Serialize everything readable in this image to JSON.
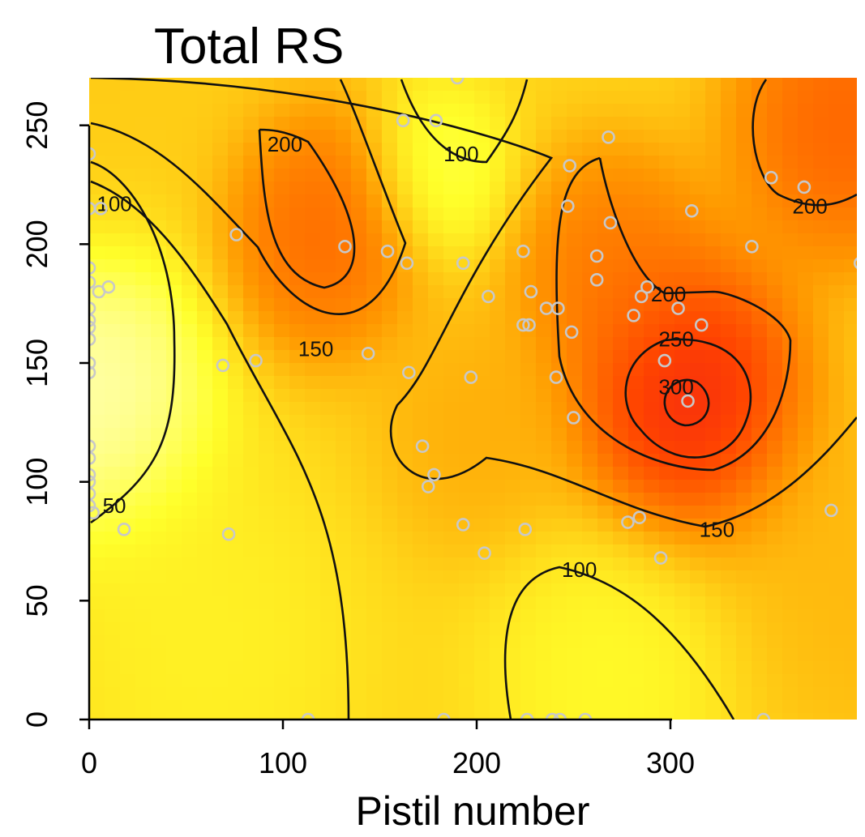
{
  "chart_data": {
    "type": "heatmap",
    "title": "Total RS",
    "xlabel": "Pistil number",
    "ylabel": "",
    "xlim": [
      0,
      400
    ],
    "ylim": [
      0,
      270
    ],
    "x_ticks": [
      0,
      100,
      200,
      300
    ],
    "y_ticks": [
      0,
      50,
      100,
      150,
      200,
      250
    ],
    "colormap": [
      "#ffffff",
      "#ffff2a",
      "#ff9900",
      "#ff4400",
      "#e8002a"
    ],
    "contour_levels": [
      50,
      100,
      150,
      200,
      250,
      300
    ],
    "contour_labels": [
      {
        "text": "50",
        "x": 13,
        "y": 90
      },
      {
        "text": "100",
        "x": 13,
        "y": 217
      },
      {
        "text": "100",
        "x": 192,
        "y": 238
      },
      {
        "text": "100",
        "x": 253,
        "y": 63
      },
      {
        "text": "150",
        "x": 117,
        "y": 156
      },
      {
        "text": "150",
        "x": 324,
        "y": 80
      },
      {
        "text": "200",
        "x": 101,
        "y": 242
      },
      {
        "text": "200",
        "x": 299,
        "y": 179
      },
      {
        "text": "200",
        "x": 372,
        "y": 216
      },
      {
        "text": "250",
        "x": 303,
        "y": 160
      },
      {
        "text": "300",
        "x": 303,
        "y": 140
      }
    ],
    "hotspots": [
      {
        "x": 0,
        "y": 140,
        "value": 10,
        "spread": 50
      },
      {
        "x": 0,
        "y": 270,
        "value": 130,
        "spread": 60
      },
      {
        "x": 120,
        "y": 205,
        "value": 240,
        "spread": 40
      },
      {
        "x": 180,
        "y": 230,
        "value": 60,
        "spread": 30
      },
      {
        "x": 310,
        "y": 135,
        "value": 330,
        "spread": 45
      },
      {
        "x": 270,
        "y": 190,
        "value": 220,
        "spread": 40
      },
      {
        "x": 390,
        "y": 250,
        "value": 250,
        "spread": 45
      },
      {
        "x": 200,
        "y": 120,
        "value": 160,
        "spread": 40
      },
      {
        "x": 270,
        "y": 20,
        "value": 80,
        "spread": 50
      },
      {
        "x": 60,
        "y": 30,
        "value": 90,
        "spread": 60
      },
      {
        "x": 400,
        "y": 60,
        "value": 150,
        "spread": 60
      }
    ],
    "points": [
      [
        0,
        238
      ],
      [
        0,
        215
      ],
      [
        6,
        215
      ],
      [
        0,
        190
      ],
      [
        0,
        184
      ],
      [
        5,
        180
      ],
      [
        10,
        182
      ],
      [
        0,
        173
      ],
      [
        0,
        168
      ],
      [
        0,
        165
      ],
      [
        0,
        160
      ],
      [
        0,
        150
      ],
      [
        0,
        146
      ],
      [
        0,
        115
      ],
      [
        0,
        110
      ],
      [
        0,
        103
      ],
      [
        0,
        100
      ],
      [
        0,
        95
      ],
      [
        0,
        90
      ],
      [
        2,
        87
      ],
      [
        18,
        80
      ],
      [
        72,
        78
      ],
      [
        76,
        204
      ],
      [
        69,
        149
      ],
      [
        86,
        151
      ],
      [
        113,
        0
      ],
      [
        132,
        199
      ],
      [
        144,
        154
      ],
      [
        154,
        197
      ],
      [
        162,
        252
      ],
      [
        164,
        192
      ],
      [
        165,
        146
      ],
      [
        172,
        115
      ],
      [
        175,
        98
      ],
      [
        178,
        103
      ],
      [
        179,
        252
      ],
      [
        183,
        0
      ],
      [
        190,
        270
      ],
      [
        193,
        192
      ],
      [
        193,
        82
      ],
      [
        197,
        144
      ],
      [
        204,
        70
      ],
      [
        206,
        178
      ],
      [
        224,
        166
      ],
      [
        224,
        197
      ],
      [
        225,
        80
      ],
      [
        226,
        0
      ],
      [
        227,
        166
      ],
      [
        228,
        180
      ],
      [
        236,
        173
      ],
      [
        239,
        0
      ],
      [
        241,
        144
      ],
      [
        242,
        173
      ],
      [
        243,
        0
      ],
      [
        247,
        216
      ],
      [
        248,
        233
      ],
      [
        249,
        163
      ],
      [
        250,
        127
      ],
      [
        256,
        0
      ],
      [
        262,
        185
      ],
      [
        262,
        195
      ],
      [
        268,
        245
      ],
      [
        269,
        209
      ],
      [
        278,
        83
      ],
      [
        281,
        170
      ],
      [
        284,
        85
      ],
      [
        285,
        178
      ],
      [
        288,
        182
      ],
      [
        295,
        68
      ],
      [
        297,
        151
      ],
      [
        304,
        173
      ],
      [
        309,
        134
      ],
      [
        311,
        214
      ],
      [
        316,
        166
      ],
      [
        342,
        199
      ],
      [
        348,
        0
      ],
      [
        352,
        228
      ],
      [
        369,
        224
      ],
      [
        383,
        88
      ],
      [
        398,
        192
      ]
    ]
  }
}
